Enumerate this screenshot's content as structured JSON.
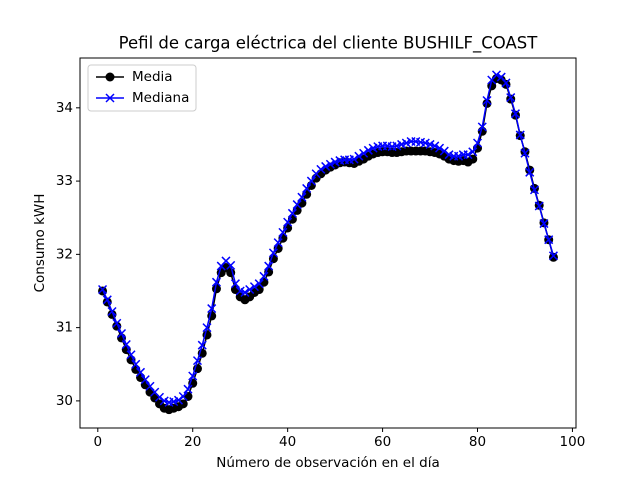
{
  "chart_data": {
    "type": "line",
    "title": "Pefil de carga eléctrica del cliente BUSHILF_COAST",
    "xlabel": "Número de observación en el día",
    "ylabel": "Consumo kWH",
    "x": [
      1,
      2,
      3,
      4,
      5,
      6,
      7,
      8,
      9,
      10,
      11,
      12,
      13,
      14,
      15,
      16,
      17,
      18,
      19,
      20,
      21,
      22,
      23,
      24,
      25,
      26,
      27,
      28,
      29,
      30,
      31,
      32,
      33,
      34,
      35,
      36,
      37,
      38,
      39,
      40,
      41,
      42,
      43,
      44,
      45,
      46,
      47,
      48,
      49,
      50,
      51,
      52,
      53,
      54,
      55,
      56,
      57,
      58,
      59,
      60,
      61,
      62,
      63,
      64,
      65,
      66,
      67,
      68,
      69,
      70,
      71,
      72,
      73,
      74,
      75,
      76,
      77,
      78,
      79,
      80,
      81,
      82,
      83,
      84,
      85,
      86,
      87,
      88,
      89,
      90,
      91,
      92,
      93,
      94,
      95,
      96
    ],
    "series": [
      {
        "name": "Media",
        "color": "#000000",
        "marker": "o",
        "values": [
          31.5,
          31.35,
          31.18,
          31.02,
          30.86,
          30.7,
          30.56,
          30.43,
          30.32,
          30.22,
          30.12,
          30.04,
          29.96,
          29.9,
          29.88,
          29.9,
          29.92,
          29.96,
          30.06,
          30.24,
          30.44,
          30.65,
          30.9,
          31.16,
          31.53,
          31.75,
          31.82,
          31.75,
          31.52,
          31.42,
          31.38,
          31.42,
          31.48,
          31.52,
          31.62,
          31.76,
          31.94,
          32.08,
          32.22,
          32.36,
          32.48,
          32.6,
          32.7,
          32.82,
          32.94,
          33.04,
          33.1,
          33.15,
          33.19,
          33.22,
          33.25,
          33.26,
          33.25,
          33.24,
          33.27,
          33.3,
          33.34,
          33.37,
          33.39,
          33.4,
          33.4,
          33.39,
          33.39,
          33.4,
          33.41,
          33.41,
          33.41,
          33.41,
          33.41,
          33.4,
          33.39,
          33.37,
          33.34,
          33.3,
          33.28,
          33.27,
          33.28,
          33.26,
          33.3,
          33.45,
          33.68,
          34.06,
          34.3,
          34.4,
          34.38,
          34.32,
          34.12,
          33.9,
          33.62,
          33.4,
          33.15,
          32.9,
          32.67,
          32.43,
          32.2,
          31.96
        ]
      },
      {
        "name": "Mediana",
        "color": "#0000ff",
        "marker": "x",
        "values": [
          31.52,
          31.38,
          31.22,
          31.06,
          30.92,
          30.77,
          30.63,
          30.5,
          30.39,
          30.29,
          30.2,
          30.12,
          30.05,
          30.0,
          29.98,
          29.99,
          30.01,
          30.06,
          30.16,
          30.34,
          30.55,
          30.76,
          31.0,
          31.26,
          31.62,
          31.84,
          31.91,
          31.85,
          31.6,
          31.5,
          31.48,
          31.52,
          31.56,
          31.6,
          31.7,
          31.84,
          32.02,
          32.16,
          32.3,
          32.44,
          32.56,
          32.68,
          32.78,
          32.9,
          33.0,
          33.1,
          33.16,
          33.2,
          33.23,
          33.26,
          33.28,
          33.29,
          33.29,
          33.3,
          33.34,
          33.38,
          33.42,
          33.45,
          33.47,
          33.48,
          33.48,
          33.47,
          33.48,
          33.5,
          33.52,
          33.54,
          33.54,
          33.53,
          33.52,
          33.5,
          33.48,
          33.45,
          33.41,
          33.36,
          33.34,
          33.34,
          33.36,
          33.36,
          33.4,
          33.52,
          33.74,
          34.1,
          34.38,
          34.45,
          34.42,
          34.34,
          34.14,
          33.92,
          33.63,
          33.38,
          33.12,
          32.88,
          32.66,
          32.42,
          32.2,
          31.98
        ]
      }
    ],
    "xlim": [
      -3.75,
      100.75
    ],
    "xticks": [
      0,
      20,
      40,
      60,
      80,
      100
    ],
    "ylim": [
      29.63,
      34.68
    ],
    "yticks": [
      30,
      31,
      32,
      33,
      34
    ],
    "legend": "upper left"
  }
}
